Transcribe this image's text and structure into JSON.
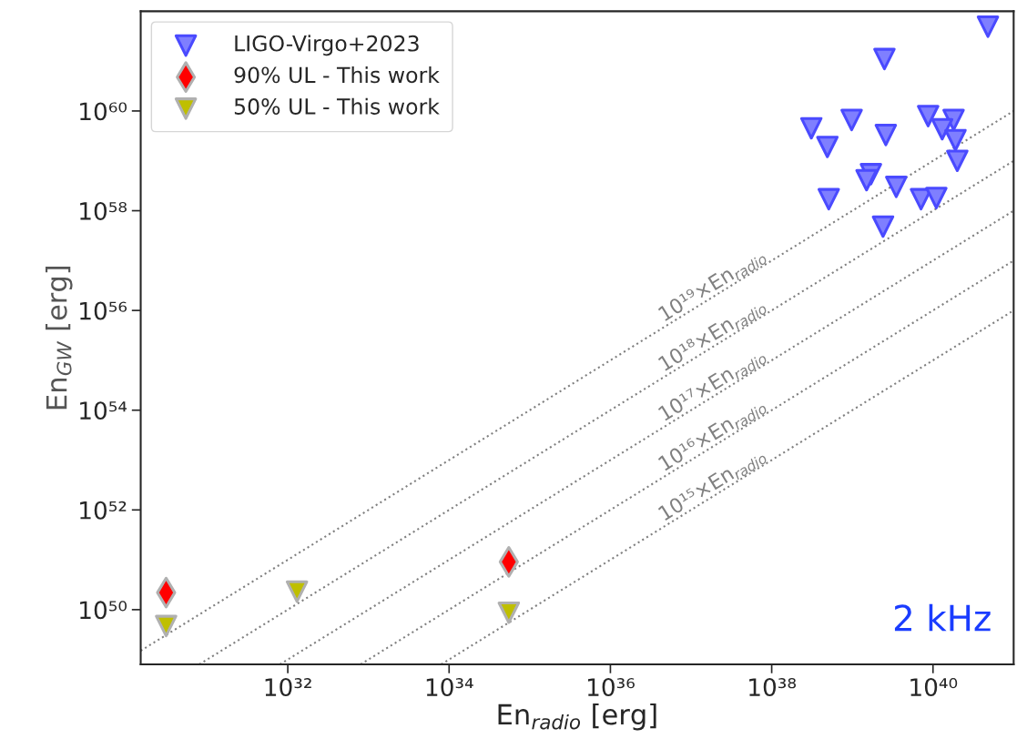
{
  "chart_data": {
    "type": "scatter",
    "xlabel": "En$_{radio}$ [erg]",
    "ylabel": "En$_{GW}$ [erg]",
    "log": "xy",
    "grid": false,
    "legend": "top left",
    "xlim": [
      1.5e+30,
      1e+41
    ],
    "ylim": [
      8e+48,
      1e+62
    ],
    "xticks": [
      {
        "value": 1e+32,
        "label": "10³²"
      },
      {
        "value": 1e+34,
        "label": "10³⁴"
      },
      {
        "value": 1e+36,
        "label": "10³⁶"
      },
      {
        "value": 1e+38,
        "label": "10³⁸"
      },
      {
        "value": 1e+40,
        "label": "10⁴⁰"
      }
    ],
    "yticks": [
      {
        "value": 1e+50,
        "label": "10⁵⁰"
      },
      {
        "value": 1e+52,
        "label": "10⁵²"
      },
      {
        "value": 1e+54,
        "label": "10⁵⁴"
      },
      {
        "value": 1e+56,
        "label": "10⁵⁶"
      },
      {
        "value": 1e+58,
        "label": "10⁵⁸"
      },
      {
        "value": 1e+60,
        "label": "10⁶⁰"
      }
    ],
    "series": [
      {
        "name": "10¹⁹×En$_{radio}$",
        "type": "line",
        "color": "#808080",
        "line_style": "dotted",
        "marker": "none",
        "x": [
          1.5e+30,
          1e+41
        ],
        "values": [
          1.5e+49,
          1e+60
        ]
      },
      {
        "name": "10¹⁸×En$_{radio}$",
        "type": "line",
        "color": "#808080",
        "line_style": "dotted",
        "marker": "none",
        "x": [
          8e+30,
          1e+41
        ],
        "values": [
          8e+48,
          1e+59
        ]
      },
      {
        "name": "10¹⁷×En$_{radio}$",
        "type": "line",
        "color": "#808080",
        "line_style": "dotted",
        "marker": "none",
        "x": [
          8e+31,
          1e+41
        ],
        "values": [
          8e+48,
          1e+58
        ]
      },
      {
        "name": "10¹⁶×En$_{radio}$",
        "type": "line",
        "color": "#808080",
        "line_style": "dotted",
        "marker": "none",
        "x": [
          8e+32,
          1e+41
        ],
        "values": [
          8e+48,
          1e+57
        ]
      },
      {
        "name": "10¹⁵×En$_{radio}$",
        "type": "line",
        "color": "#808080",
        "line_style": "dotted",
        "marker": "none",
        "x": [
          8e+33,
          1e+41
        ],
        "values": [
          8e+48,
          1e+56
        ]
      },
      {
        "name": "LIGO-Virgo+2023",
        "marker": "triangle",
        "color": "#7f7fff",
        "x": [
          4.8e+40,
          2.5e+39,
          3.1e+38,
          4.9e+38,
          9.8e+38,
          2.6e+39,
          8.7e+39,
          1.8e+40,
          1.3e+40,
          1.9e+40,
          2e+40,
          1.7e+39,
          1.5e+39,
          3.5e+39,
          5.1e+38,
          7.1e+39,
          1.1e+40,
          2.4e+39
        ],
        "values": [
          4.9e+61,
          1.1e+61,
          4.5e+59,
          1.9e+59,
          6.6e+59,
          3.3e+59,
          7.9e+59,
          6.6e+59,
          4.3e+59,
          2.6e+59,
          1e+59,
          5.4e+58,
          4.1e+58,
          3e+58,
          1.7e+58,
          1.7e+58,
          1.8e+58,
          4.8e+57
        ]
      },
      {
        "name": "90% UL - This work",
        "marker": "diamond",
        "color": "#ff0000",
        "x": [
          3.1e+30,
          5.5e+34
        ],
        "values": [
          2.2e+50,
          9.1e+50
        ]
      },
      {
        "name": "50% UL - This work",
        "marker": "triangle",
        "color": "#bfbf00",
        "x": [
          3.1e+30,
          1.3e+32,
          5.5e+34
        ],
        "values": [
          4.7e+49,
          2.3e+50,
          8.7e+49
        ]
      }
    ],
    "annotations": [
      "2 kHz"
    ]
  }
}
